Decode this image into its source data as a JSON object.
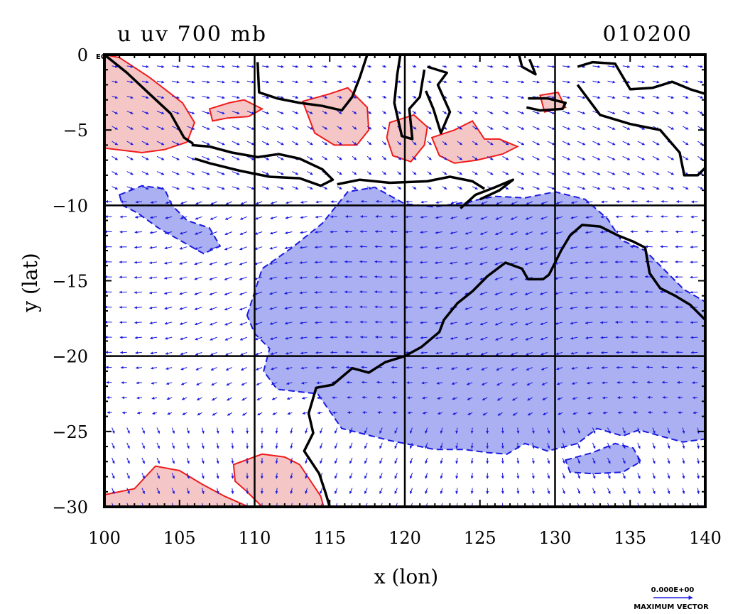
{
  "chart_data": {
    "type": "map-vector-contour",
    "title": "u uv 700 mb",
    "date_label": "010200",
    "xlabel": "x (lon)",
    "ylabel": "y (lat)",
    "xlim": [
      100,
      140
    ],
    "ylim": [
      -30,
      0
    ],
    "x_ticks": [
      100,
      105,
      110,
      115,
      120,
      125,
      130,
      135,
      140
    ],
    "x_tick_labels": [
      "100",
      "105",
      "110",
      "115",
      "120",
      "125",
      "130",
      "135",
      "140"
    ],
    "y_ticks": [
      0,
      -5,
      -10,
      -15,
      -20,
      -25,
      -30
    ],
    "y_tick_labels": [
      "0",
      "−5",
      "−10",
      "−15",
      "−20",
      "−25",
      "−30"
    ],
    "eq_label": "EQ",
    "grid_lon": [
      110,
      120,
      130
    ],
    "grid_lat": [
      -10,
      -20
    ],
    "vector_key": {
      "magnitude_label": "0.000E+00",
      "caption": "MAXIMUM VECTOR"
    },
    "colors": {
      "positive": "#f5c6c6",
      "positive_line": "#ee1c1c",
      "negative": "#aab0f2",
      "negative_line": "#1a1ae0",
      "vectors": "#1a1ae0",
      "coast": "#000000"
    },
    "positive_regions": [
      {
        "name": "sumatra-west",
        "points": [
          [
            100,
            0
          ],
          [
            101,
            -0.2
          ],
          [
            103,
            -1.5
          ],
          [
            105.2,
            -3.2
          ],
          [
            106,
            -4.5
          ],
          [
            105.5,
            -5.8
          ],
          [
            104,
            -6.3
          ],
          [
            102.5,
            -6.5
          ],
          [
            100,
            -6.2
          ]
        ]
      },
      {
        "name": "java-sea-north",
        "points": [
          [
            107,
            -3.6
          ],
          [
            108.3,
            -3.2
          ],
          [
            109.3,
            -3
          ],
          [
            110.5,
            -3.6
          ],
          [
            109.6,
            -4.1
          ],
          [
            108.2,
            -4.2
          ],
          [
            107.2,
            -4.4
          ]
        ]
      },
      {
        "name": "borneo-south",
        "points": [
          [
            113.2,
            -3.1
          ],
          [
            115,
            -2.6
          ],
          [
            116.2,
            -2.2
          ],
          [
            117.5,
            -3.5
          ],
          [
            117.6,
            -5
          ],
          [
            116.8,
            -6
          ],
          [
            115.3,
            -6
          ],
          [
            114,
            -5.2
          ]
        ]
      },
      {
        "name": "sulawesi",
        "points": [
          [
            119,
            -4.5
          ],
          [
            120.6,
            -4
          ],
          [
            121.5,
            -4.8
          ],
          [
            121.3,
            -6
          ],
          [
            120.4,
            -7.1
          ],
          [
            119.2,
            -6.7
          ],
          [
            118.8,
            -5.5
          ]
        ]
      },
      {
        "name": "banda",
        "points": [
          [
            121.8,
            -5.5
          ],
          [
            123.3,
            -5
          ],
          [
            124.5,
            -4.4
          ],
          [
            125.3,
            -5.6
          ],
          [
            126.3,
            -5.6
          ],
          [
            127.5,
            -6.1
          ],
          [
            126.5,
            -6.6
          ],
          [
            124.8,
            -7
          ],
          [
            123.3,
            -7.2
          ],
          [
            122.3,
            -6.7
          ]
        ]
      },
      {
        "name": "seram",
        "points": [
          [
            129,
            -2.7
          ],
          [
            130.2,
            -2.5
          ],
          [
            130.7,
            -3.5
          ],
          [
            129.3,
            -3.8
          ]
        ]
      },
      {
        "name": "indian-ocean-sw",
        "points": [
          [
            100,
            -29.2
          ],
          [
            102,
            -28.8
          ],
          [
            103.4,
            -27.3
          ],
          [
            105,
            -27.6
          ],
          [
            106.5,
            -28.5
          ],
          [
            108,
            -29.3
          ],
          [
            109.6,
            -30
          ],
          [
            100,
            -30
          ]
        ]
      },
      {
        "name": "indian-ocean-s",
        "points": [
          [
            108.6,
            -27.2
          ],
          [
            110.5,
            -26.5
          ],
          [
            112,
            -26.7
          ],
          [
            113,
            -27.2
          ],
          [
            113.8,
            -28.4
          ],
          [
            114.4,
            -29.3
          ],
          [
            114.6,
            -30
          ],
          [
            110.5,
            -30
          ],
          [
            109.5,
            -29
          ],
          [
            108.7,
            -28.3
          ]
        ]
      }
    ],
    "negative_regions": [
      {
        "name": "main-negative",
        "points": [
          [
            109.5,
            -17.3
          ],
          [
            110.5,
            -14.2
          ],
          [
            112.5,
            -12.8
          ],
          [
            114.5,
            -11.2
          ],
          [
            116.2,
            -9.1
          ],
          [
            118,
            -8.8
          ],
          [
            120,
            -9.9
          ],
          [
            122,
            -10.1
          ],
          [
            124,
            -9.8
          ],
          [
            126,
            -9.4
          ],
          [
            128,
            -9.5
          ],
          [
            130,
            -9.1
          ],
          [
            132,
            -9.6
          ],
          [
            133.5,
            -10.9
          ],
          [
            134.4,
            -12.3
          ],
          [
            136,
            -13
          ],
          [
            137.2,
            -14.2
          ],
          [
            138.6,
            -15.6
          ],
          [
            140,
            -16.4
          ],
          [
            140,
            -25.5
          ],
          [
            138.5,
            -25.7
          ],
          [
            137,
            -25.3
          ],
          [
            135.6,
            -24.9
          ],
          [
            134.5,
            -25.3
          ],
          [
            132.8,
            -24.8
          ],
          [
            131.5,
            -25.8
          ],
          [
            129.5,
            -26.3
          ],
          [
            128,
            -25.8
          ],
          [
            126.8,
            -26.5
          ],
          [
            125.5,
            -26.4
          ],
          [
            124,
            -26.2
          ],
          [
            122,
            -26.2
          ],
          [
            120.5,
            -25.9
          ],
          [
            119,
            -25.6
          ],
          [
            117.4,
            -25.2
          ],
          [
            115.8,
            -24.8
          ],
          [
            114.2,
            -22.5
          ],
          [
            111.5,
            -22.2
          ],
          [
            110.6,
            -21
          ],
          [
            111,
            -19.5
          ],
          [
            110,
            -18.5
          ]
        ]
      },
      {
        "name": "south-blob",
        "points": [
          [
            130.7,
            -26.9
          ],
          [
            132.5,
            -26.4
          ],
          [
            134,
            -25.8
          ],
          [
            135.2,
            -26.1
          ],
          [
            135.7,
            -27
          ],
          [
            134.5,
            -27.7
          ],
          [
            132.5,
            -27.8
          ],
          [
            131,
            -27.7
          ]
        ]
      },
      {
        "name": "west-blob",
        "points": [
          [
            101,
            -9.3
          ],
          [
            102.5,
            -8.7
          ],
          [
            104,
            -8.9
          ],
          [
            104.5,
            -10
          ],
          [
            105.5,
            -11
          ],
          [
            107,
            -11.5
          ],
          [
            107.7,
            -12.7
          ],
          [
            106.6,
            -13.2
          ],
          [
            105,
            -12.3
          ],
          [
            103.6,
            -11.5
          ],
          [
            102.2,
            -10.5
          ],
          [
            101.2,
            -10
          ]
        ]
      }
    ],
    "coastlines": [
      {
        "name": "sumatra",
        "points": [
          [
            100,
            0
          ],
          [
            101.5,
            -1.2
          ],
          [
            103,
            -2.6
          ],
          [
            104.4,
            -3.9
          ],
          [
            105.3,
            -5.5
          ],
          [
            105.9,
            -5.9
          ]
        ]
      },
      {
        "name": "java",
        "points": [
          [
            105.8,
            -6
          ],
          [
            107,
            -6.1
          ],
          [
            108.5,
            -6.5
          ],
          [
            110.2,
            -6.8
          ],
          [
            111.6,
            -6.6
          ],
          [
            113,
            -6.9
          ],
          [
            114.5,
            -7.6
          ],
          [
            115.2,
            -8.3
          ],
          [
            114.4,
            -8.7
          ],
          [
            113,
            -8.2
          ],
          [
            111,
            -8.1
          ],
          [
            109,
            -7.7
          ],
          [
            107,
            -7.2
          ],
          [
            106,
            -6.9
          ]
        ]
      },
      {
        "name": "lesser-sundas",
        "points": [
          [
            115.5,
            -8.6
          ],
          [
            117,
            -8.3
          ],
          [
            119,
            -8.5
          ],
          [
            121.5,
            -8.4
          ],
          [
            123,
            -8.1
          ],
          [
            124.5,
            -8.4
          ],
          [
            125.3,
            -8.9
          ]
        ]
      },
      {
        "name": "timor",
        "points": [
          [
            123.7,
            -10.2
          ],
          [
            124.7,
            -9.3
          ],
          [
            126,
            -8.8
          ],
          [
            127.2,
            -8.3
          ],
          [
            126.3,
            -9
          ],
          [
            125,
            -9.6
          ]
        ]
      },
      {
        "name": "borneo-south-coast",
        "points": [
          [
            110.2,
            -0.5
          ],
          [
            110.3,
            -2.5
          ],
          [
            111.5,
            -2.9
          ],
          [
            113,
            -3.2
          ],
          [
            114.5,
            -3.4
          ],
          [
            115.8,
            -3.7
          ],
          [
            116.5,
            -2.8
          ],
          [
            117,
            -1.5
          ],
          [
            117.5,
            0
          ]
        ]
      },
      {
        "name": "sulawesi-west",
        "points": [
          [
            119.7,
            0
          ],
          [
            119.5,
            -1.3
          ],
          [
            119.3,
            -3.2
          ],
          [
            119.8,
            -5.4
          ],
          [
            120.5,
            -5.6
          ],
          [
            120.3,
            -3.6
          ],
          [
            121,
            -2.8
          ],
          [
            121.3,
            -1
          ]
        ]
      },
      {
        "name": "sulawesi-east",
        "points": [
          [
            121.5,
            -0.8
          ],
          [
            122.8,
            -1.2
          ],
          [
            122.2,
            -2
          ],
          [
            123,
            -3.8
          ],
          [
            122.4,
            -5.2
          ],
          [
            121.9,
            -3.6
          ],
          [
            121.4,
            -2.4
          ]
        ]
      },
      {
        "name": "halmahera",
        "points": [
          [
            127.6,
            0
          ],
          [
            127.8,
            -0.8
          ],
          [
            128.7,
            -1.3
          ],
          [
            128.3,
            -0.3
          ]
        ]
      },
      {
        "name": "seram-buru",
        "points": [
          [
            128.2,
            -2.9
          ],
          [
            129.5,
            -2.9
          ],
          [
            130.7,
            -3.2
          ],
          [
            130.5,
            -3.6
          ],
          [
            129,
            -3.7
          ],
          [
            128.1,
            -3.5
          ]
        ]
      },
      {
        "name": "new-guinea",
        "points": [
          [
            131.5,
            -0.8
          ],
          [
            132.5,
            -0.5
          ],
          [
            134,
            -0.6
          ],
          [
            135,
            -2.3
          ],
          [
            136.5,
            -2.2
          ],
          [
            137.8,
            -1.8
          ],
          [
            139,
            -2.3
          ],
          [
            140,
            -2.6
          ],
          [
            140,
            -0.8
          ]
        ]
      },
      {
        "name": "new-guinea-south",
        "points": [
          [
            131.5,
            -2
          ],
          [
            133,
            -4
          ],
          [
            135,
            -4.6
          ],
          [
            137,
            -5
          ],
          [
            138.3,
            -6.5
          ],
          [
            138.6,
            -8
          ],
          [
            139.5,
            -8
          ],
          [
            140,
            -7.5
          ]
        ]
      },
      {
        "name": "australia",
        "points": [
          [
            140,
            -17.6
          ],
          [
            139,
            -16.6
          ],
          [
            138,
            -16
          ],
          [
            137,
            -15.5
          ],
          [
            136.3,
            -14.5
          ],
          [
            136,
            -12.8
          ],
          [
            135.2,
            -12.4
          ],
          [
            134.2,
            -12
          ],
          [
            133,
            -11.4
          ],
          [
            131.8,
            -11.3
          ],
          [
            131,
            -12
          ],
          [
            130.4,
            -13
          ],
          [
            129.6,
            -14.6
          ],
          [
            129.2,
            -14.9
          ],
          [
            128.2,
            -14.9
          ],
          [
            127.8,
            -14.2
          ],
          [
            126.7,
            -13.8
          ],
          [
            125.5,
            -14.7
          ],
          [
            124.5,
            -15.7
          ],
          [
            123.5,
            -16.5
          ],
          [
            122.6,
            -17.6
          ],
          [
            122.3,
            -18.4
          ],
          [
            121.1,
            -19.4
          ],
          [
            120,
            -20
          ],
          [
            118.7,
            -20.4
          ],
          [
            117.6,
            -21.1
          ],
          [
            116.5,
            -20.8
          ],
          [
            115.2,
            -21.9
          ],
          [
            114.1,
            -22.1
          ],
          [
            113.6,
            -23.8
          ],
          [
            113.9,
            -25.1
          ],
          [
            113.3,
            -26.3
          ],
          [
            114.3,
            -27.8
          ],
          [
            114.7,
            -29
          ],
          [
            115,
            -30
          ]
        ]
      }
    ]
  }
}
